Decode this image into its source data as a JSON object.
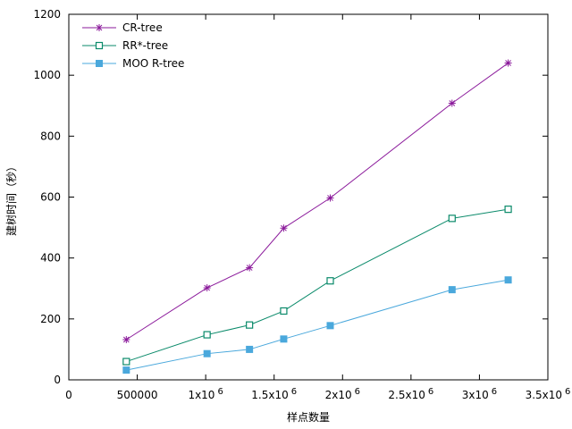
{
  "chart_data": {
    "type": "line",
    "title": "",
    "xlabel": "样点数量",
    "ylabel": "建树时间（秒）",
    "xlim": [
      0,
      3500000
    ],
    "ylim": [
      0,
      1200
    ],
    "grid": false,
    "legend_position": "top-left",
    "x_ticks": [
      {
        "value": 0,
        "label": "0",
        "sup": ""
      },
      {
        "value": 500000,
        "label": "500000",
        "sup": ""
      },
      {
        "value": 1000000,
        "label": "1x10",
        "sup": "6"
      },
      {
        "value": 1500000,
        "label": "1.5x10",
        "sup": "6"
      },
      {
        "value": 2000000,
        "label": "2x10",
        "sup": "6"
      },
      {
        "value": 2500000,
        "label": "2.5x10",
        "sup": "6"
      },
      {
        "value": 3000000,
        "label": "3x10",
        "sup": "6"
      },
      {
        "value": 3500000,
        "label": "3.5x10",
        "sup": "6"
      }
    ],
    "y_ticks": [
      0,
      200,
      400,
      600,
      800,
      1000,
      1200
    ],
    "series": [
      {
        "name": "CR-tree",
        "color": "#8b1a9b",
        "marker": "star",
        "x": [
          420000,
          1010000,
          1320000,
          1570000,
          1910000,
          2800000,
          3210000
        ],
        "y": [
          132,
          302,
          368,
          498,
          597,
          908,
          1040
        ]
      },
      {
        "name": "RR*-tree",
        "color": "#0a8a6a",
        "marker": "open-square",
        "x": [
          420000,
          1010000,
          1320000,
          1570000,
          1910000,
          2800000,
          3210000
        ],
        "y": [
          60,
          148,
          180,
          226,
          325,
          530,
          560
        ]
      },
      {
        "name": "MOO R-tree",
        "color": "#4aa8dc",
        "marker": "filled-square",
        "x": [
          420000,
          1010000,
          1320000,
          1570000,
          1910000,
          2800000,
          3210000
        ],
        "y": [
          32,
          86,
          100,
          134,
          178,
          296,
          328
        ]
      }
    ]
  }
}
